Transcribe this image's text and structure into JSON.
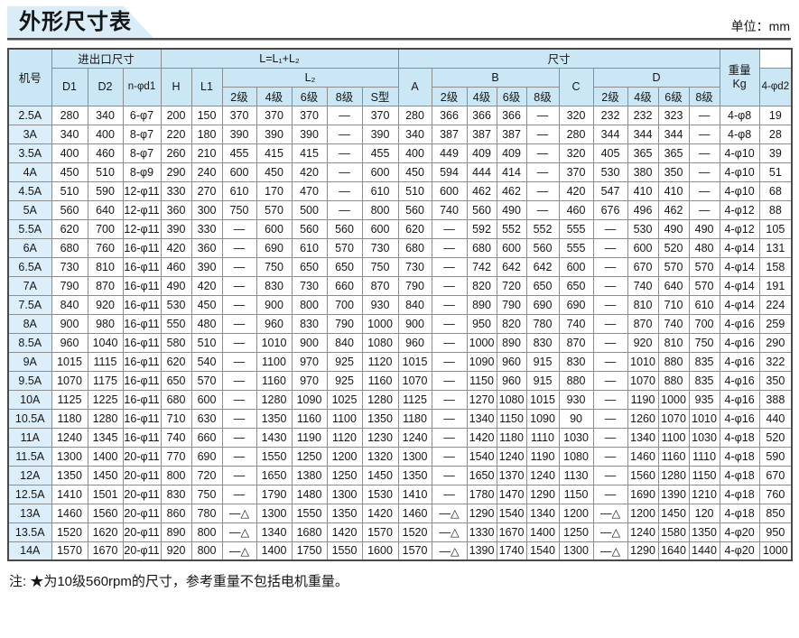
{
  "title": "外形尺寸表",
  "unit": "单位：mm",
  "note": "注: ★为10级560rpm的尺寸，参考重量不包括电机重量。",
  "colors": {
    "tab_blue": "#d9ecf8",
    "header_blue": "#cbe7f5",
    "rowhead_blue": "#dceef9",
    "grid_gray": "#8d8d8d"
  },
  "table": {
    "headers": {
      "machine_no": "机号",
      "inlet_outlet": "进出口尺寸",
      "l_total": "L=L₁+L₂",
      "l2": "L₂",
      "dimensions": "尺寸",
      "weight": "重量\nKg",
      "d1": "D1",
      "d2": "D2",
      "n_d1": "n-φd1",
      "h": "H",
      "l1": "L1",
      "a": "A",
      "b": "B",
      "c": "C",
      "d": "D",
      "bolt_d2": "4-φd2",
      "stages": [
        "2级",
        "4级",
        "6级",
        "8级"
      ],
      "s_type": "S型"
    },
    "rows": [
      [
        "2.5A",
        "280",
        "340",
        "6-φ7",
        "200",
        "150",
        "370",
        "370",
        "370",
        "—",
        "370",
        "280",
        "366",
        "366",
        "366",
        "—",
        "320",
        "232",
        "232",
        "323",
        "—",
        "4-φ8",
        "19"
      ],
      [
        "3A",
        "340",
        "400",
        "8-φ7",
        "220",
        "180",
        "390",
        "390",
        "390",
        "—",
        "390",
        "340",
        "387",
        "387",
        "387",
        "—",
        "280",
        "344",
        "344",
        "344",
        "—",
        "4-φ8",
        "28"
      ],
      [
        "3.5A",
        "400",
        "460",
        "8-φ7",
        "260",
        "210",
        "455",
        "415",
        "415",
        "—",
        "455",
        "400",
        "449",
        "409",
        "409",
        "—",
        "320",
        "405",
        "365",
        "365",
        "—",
        "4-φ10",
        "39"
      ],
      [
        "4A",
        "450",
        "510",
        "8-φ9",
        "290",
        "240",
        "600",
        "450",
        "420",
        "—",
        "600",
        "450",
        "594",
        "444",
        "414",
        "—",
        "370",
        "530",
        "380",
        "350",
        "—",
        "4-φ10",
        "51"
      ],
      [
        "4.5A",
        "510",
        "590",
        "12-φ11",
        "330",
        "270",
        "610",
        "170",
        "470",
        "—",
        "610",
        "510",
        "600",
        "462",
        "462",
        "—",
        "420",
        "547",
        "410",
        "410",
        "—",
        "4-φ10",
        "68"
      ],
      [
        "5A",
        "560",
        "640",
        "12-φ11",
        "360",
        "300",
        "750",
        "570",
        "500",
        "—",
        "800",
        "560",
        "740",
        "560",
        "490",
        "—",
        "460",
        "676",
        "496",
        "462",
        "—",
        "4-φ12",
        "88"
      ],
      [
        "5.5A",
        "620",
        "700",
        "12-φ11",
        "390",
        "330",
        "—",
        "600",
        "560",
        "560",
        "600",
        "620",
        "—",
        "592",
        "552",
        "552",
        "555",
        "—",
        "530",
        "490",
        "490",
        "4-φ12",
        "105"
      ],
      [
        "6A",
        "680",
        "760",
        "16-φ11",
        "420",
        "360",
        "—",
        "690",
        "610",
        "570",
        "730",
        "680",
        "—",
        "680",
        "600",
        "560",
        "555",
        "—",
        "600",
        "520",
        "480",
        "4-φ14",
        "131"
      ],
      [
        "6.5A",
        "730",
        "810",
        "16-φ11",
        "460",
        "390",
        "—",
        "750",
        "650",
        "650",
        "750",
        "730",
        "—",
        "742",
        "642",
        "642",
        "600",
        "—",
        "670",
        "570",
        "570",
        "4-φ14",
        "158"
      ],
      [
        "7A",
        "790",
        "870",
        "16-φ11",
        "490",
        "420",
        "—",
        "830",
        "730",
        "660",
        "870",
        "790",
        "—",
        "820",
        "720",
        "650",
        "650",
        "—",
        "740",
        "640",
        "570",
        "4-φ14",
        "191"
      ],
      [
        "7.5A",
        "840",
        "920",
        "16-φ11",
        "530",
        "450",
        "—",
        "900",
        "800",
        "700",
        "930",
        "840",
        "—",
        "890",
        "790",
        "690",
        "690",
        "—",
        "810",
        "710",
        "610",
        "4-φ14",
        "224"
      ],
      [
        "8A",
        "900",
        "980",
        "16-φ11",
        "550",
        "480",
        "—",
        "960",
        "830",
        "790",
        "1000",
        "900",
        "—",
        "950",
        "820",
        "780",
        "740",
        "—",
        "870",
        "740",
        "700",
        "4-φ16",
        "259"
      ],
      [
        "8.5A",
        "960",
        "1040",
        "16-φ11",
        "580",
        "510",
        "—",
        "1010",
        "900",
        "840",
        "1080",
        "960",
        "—",
        "1000",
        "890",
        "830",
        "870",
        "—",
        "920",
        "810",
        "750",
        "4-φ16",
        "290"
      ],
      [
        "9A",
        "1015",
        "1115",
        "16-φ11",
        "620",
        "540",
        "—",
        "1100",
        "970",
        "925",
        "1120",
        "1015",
        "—",
        "1090",
        "960",
        "915",
        "830",
        "—",
        "1010",
        "880",
        "835",
        "4-φ16",
        "322"
      ],
      [
        "9.5A",
        "1070",
        "1175",
        "16-φ11",
        "650",
        "570",
        "—",
        "1160",
        "970",
        "925",
        "1160",
        "1070",
        "—",
        "1150",
        "960",
        "915",
        "880",
        "—",
        "1070",
        "880",
        "835",
        "4-φ16",
        "350"
      ],
      [
        "10A",
        "1125",
        "1225",
        "16-φ11",
        "680",
        "600",
        "—",
        "1280",
        "1090",
        "1025",
        "1280",
        "1125",
        "—",
        "1270",
        "1080",
        "1015",
        "930",
        "—",
        "1190",
        "1000",
        "935",
        "4-φ16",
        "388"
      ],
      [
        "10.5A",
        "1180",
        "1280",
        "16-φ11",
        "710",
        "630",
        "—",
        "1350",
        "1160",
        "1100",
        "1350",
        "1180",
        "—",
        "1340",
        "1150",
        "1090",
        "90",
        "—",
        "1260",
        "1070",
        "1010",
        "4-φ16",
        "440"
      ],
      [
        "11A",
        "1240",
        "1345",
        "16-φ11",
        "740",
        "660",
        "—",
        "1430",
        "1190",
        "1120",
        "1230",
        "1240",
        "—",
        "1420",
        "1180",
        "1110",
        "1030",
        "—",
        "1340",
        "1100",
        "1030",
        "4-φ18",
        "520"
      ],
      [
        "11.5A",
        "1300",
        "1400",
        "20-φ11",
        "770",
        "690",
        "—",
        "1550",
        "1250",
        "1200",
        "1320",
        "1300",
        "—",
        "1540",
        "1240",
        "1190",
        "1080",
        "—",
        "1460",
        "1160",
        "1110",
        "4-φ18",
        "590"
      ],
      [
        "12A",
        "1350",
        "1450",
        "20-φ11",
        "800",
        "720",
        "—",
        "1650",
        "1380",
        "1250",
        "1450",
        "1350",
        "—",
        "1650",
        "1370",
        "1240",
        "1130",
        "—",
        "1560",
        "1280",
        "1150",
        "4-φ18",
        "670"
      ],
      [
        "12.5A",
        "1410",
        "1501",
        "20-φ11",
        "830",
        "750",
        "—",
        "1790",
        "1480",
        "1300",
        "1530",
        "1410",
        "—",
        "1780",
        "1470",
        "1290",
        "1150",
        "—",
        "1690",
        "1390",
        "1210",
        "4-φ18",
        "760"
      ],
      [
        "13A",
        "1460",
        "1560",
        "20-φ11",
        "860",
        "780",
        "—△",
        "1300",
        "1550",
        "1350",
        "1420",
        "1460",
        "—△",
        "1290",
        "1540",
        "1340",
        "1200",
        "—△",
        "1200",
        "1450",
        "120",
        "4-φ18",
        "850"
      ],
      [
        "13.5A",
        "1520",
        "1620",
        "20-φ11",
        "890",
        "800",
        "—△",
        "1340",
        "1680",
        "1420",
        "1570",
        "1520",
        "—△",
        "1330",
        "1670",
        "1400",
        "1250",
        "—△",
        "1240",
        "1580",
        "1350",
        "4-φ20",
        "950"
      ],
      [
        "14A",
        "1570",
        "1670",
        "20-φ11",
        "920",
        "800",
        "—△",
        "1400",
        "1750",
        "1550",
        "1600",
        "1570",
        "—△",
        "1390",
        "1740",
        "1540",
        "1300",
        "—△",
        "1290",
        "1640",
        "1440",
        "4-φ20",
        "1000"
      ]
    ]
  }
}
